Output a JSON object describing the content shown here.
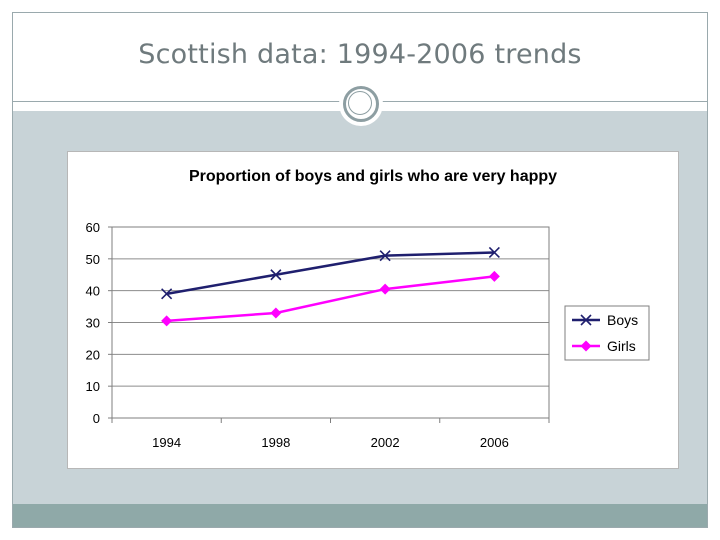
{
  "slide": {
    "title": "Scottish data: 1994-2006 trends",
    "colors": {
      "title_text": "#6f7a7d",
      "content_band": "#c8d3d7",
      "footer_band": "#8fa9a8",
      "border": "#9aa9ad"
    },
    "icons": [
      "circle-ornament-icon"
    ]
  },
  "chart_data": {
    "type": "line",
    "title": "Proportion of boys and girls who are very happy",
    "xlabel": "",
    "ylabel": "",
    "categories": [
      "1994",
      "1998",
      "2002",
      "2006"
    ],
    "ylim": [
      0,
      60
    ],
    "yticks": [
      0,
      10,
      20,
      30,
      40,
      50,
      60
    ],
    "grid": "horizontal",
    "legend_position": "right",
    "series": [
      {
        "name": "Boys",
        "values": [
          39,
          45,
          51,
          52
        ],
        "color": "#1f1f6e",
        "marker": "x"
      },
      {
        "name": "Girls",
        "values": [
          30.5,
          33,
          40.5,
          44.5
        ],
        "color": "#ff00ff",
        "marker": "diamond"
      }
    ]
  }
}
